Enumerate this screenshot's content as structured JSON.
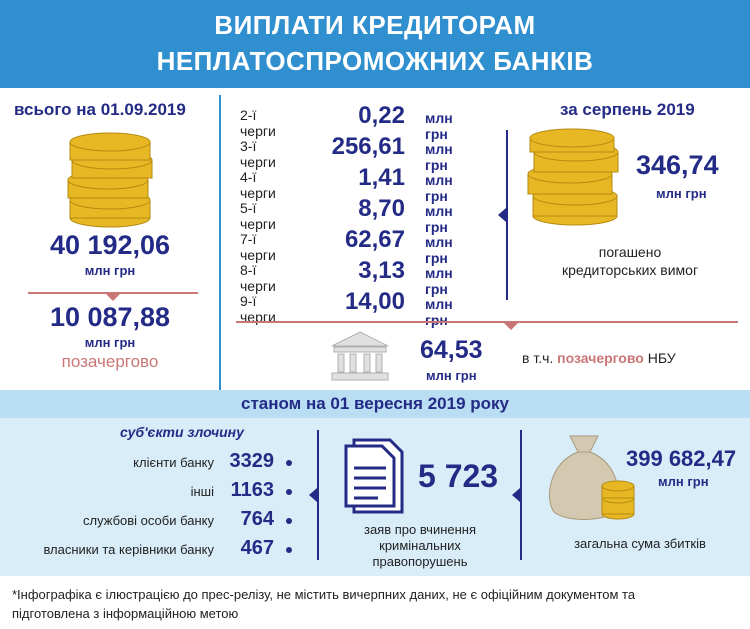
{
  "header": {
    "line1": "ВИПЛАТИ КРЕДИТОРАМ",
    "line2": "НЕПЛАТОСПРОМОЖНИХ БАНКІВ"
  },
  "total": {
    "title": "всього на 01.09.2019",
    "value": "40 192,06",
    "unit": "млн грн",
    "priority_value": "10 087,88",
    "priority_unit": "млн грн",
    "priority_label": "позачергово"
  },
  "queues": [
    {
      "label": "2-ї черги",
      "value": "0,22",
      "unit": "млн грн"
    },
    {
      "label": "3-ї черги",
      "value": "256,61",
      "unit": "млн грн"
    },
    {
      "label": "4-ї черги",
      "value": "1,41",
      "unit": "млн грн"
    },
    {
      "label": "5-ї черги",
      "value": "8,70",
      "unit": "млн грн"
    },
    {
      "label": "7-ї черги",
      "value": "62,67",
      "unit": "млн грн"
    },
    {
      "label": "8-ї черги",
      "value": "3,13",
      "unit": "млн грн"
    },
    {
      "label": "9-ї черги",
      "value": "14,00",
      "unit": "млн грн"
    }
  ],
  "august": {
    "title": "за серпень 2019",
    "value": "346,74",
    "unit": "млн грн",
    "caption_line1": "погашено",
    "caption_line2": "кредиторських вимог"
  },
  "nbu": {
    "value": "64,53",
    "unit": "млн грн",
    "prefix": "в т.ч.",
    "highlight": "позачергово",
    "suffix": "НБУ"
  },
  "band_title": "станом на 01 вересня 2019 року",
  "crime": {
    "title": "суб'єкти злочину",
    "items": [
      {
        "label": "клієнти банку",
        "value": "3329"
      },
      {
        "label": "інші",
        "value": "1163"
      },
      {
        "label": "службові особи банку",
        "value": "764"
      },
      {
        "label": "власники та керівники банку",
        "value": "467"
      }
    ]
  },
  "statements": {
    "value": "5 723",
    "caption_line1": "заяв про вчинення",
    "caption_line2": "кримінальних",
    "caption_line3": "правопорушень"
  },
  "losses": {
    "value": "399 682,47",
    "unit": "млн грн",
    "caption": "загальна сума збитків"
  },
  "footer": {
    "line1": "*Інфографіка є ілюстрацією до прес-релізу, не містить вичерпних даних, не є офіційним документом та",
    "line2": "підготовлена з інформаційною метою"
  },
  "colors": {
    "header": "#2f8fcf",
    "navy": "#232b86",
    "pink": "#c97676",
    "gold": "#e8b824",
    "band": "#b9ddf2",
    "lower": "#d9edf9"
  }
}
